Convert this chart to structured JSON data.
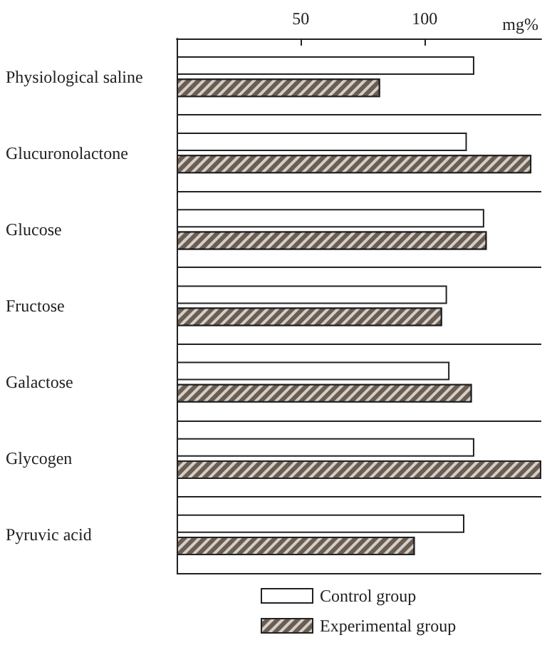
{
  "chart_data": {
    "type": "bar",
    "orientation": "horizontal",
    "xlabel": "mg%",
    "categories": [
      "Physiological saline",
      "Glucuronolactone",
      "Glucose",
      "Fructose",
      "Galactose",
      "Glycogen",
      "Pyruvic acid"
    ],
    "series": [
      {
        "name": "Control group",
        "color": "#ffffff",
        "values": [
          120,
          117,
          124,
          109,
          110,
          120,
          116
        ]
      },
      {
        "name": "Experimental group",
        "color": "#6b5d50",
        "values": [
          82,
          143,
          125,
          107,
          119,
          147,
          96
        ]
      }
    ],
    "xlim": [
      0,
      147
    ],
    "xticks": [
      50,
      100
    ],
    "grid": "y",
    "legend": "bottom"
  }
}
